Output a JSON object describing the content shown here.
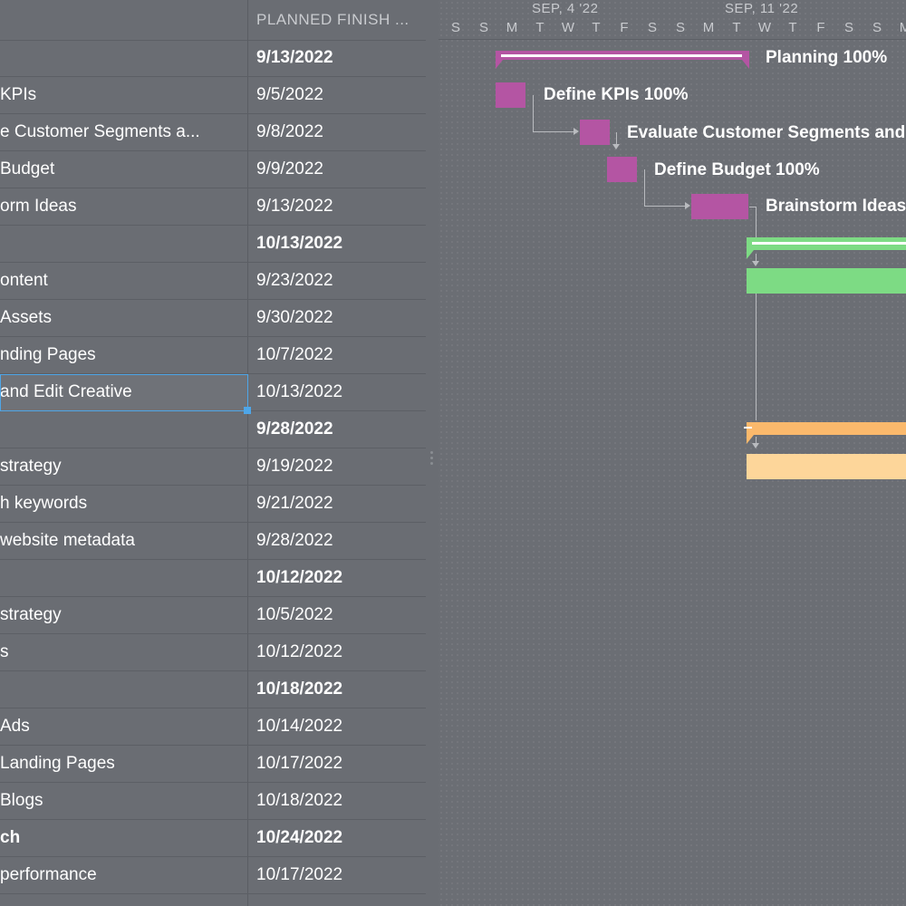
{
  "grid": {
    "finish_header": "PLANNED FINISH ...",
    "rows": [
      {
        "name": "",
        "finish": "9/13/2022",
        "bold": true
      },
      {
        "name": "KPIs",
        "finish": "9/5/2022",
        "bold": false
      },
      {
        "name": "e Customer Segments a...",
        "finish": "9/8/2022",
        "bold": false
      },
      {
        "name": "Budget",
        "finish": "9/9/2022",
        "bold": false
      },
      {
        "name": "orm Ideas",
        "finish": "9/13/2022",
        "bold": false
      },
      {
        "name": "",
        "finish": "10/13/2022",
        "bold": true
      },
      {
        "name": "ontent",
        "finish": "9/23/2022",
        "bold": false
      },
      {
        "name": "Assets",
        "finish": "9/30/2022",
        "bold": false
      },
      {
        "name": "nding Pages",
        "finish": "10/7/2022",
        "bold": false
      },
      {
        "name": "and Edit Creative",
        "finish": "10/13/2022",
        "bold": false
      },
      {
        "name": "",
        "finish": "9/28/2022",
        "bold": true
      },
      {
        "name": "strategy",
        "finish": "9/19/2022",
        "bold": false
      },
      {
        "name": "h keywords",
        "finish": "9/21/2022",
        "bold": false
      },
      {
        "name": "website metadata",
        "finish": "9/28/2022",
        "bold": false
      },
      {
        "name": "",
        "finish": "10/12/2022",
        "bold": true
      },
      {
        "name": "strategy",
        "finish": "10/5/2022",
        "bold": false
      },
      {
        "name": "s",
        "finish": "10/12/2022",
        "bold": false
      },
      {
        "name": "",
        "finish": "10/18/2022",
        "bold": true
      },
      {
        "name": "Ads",
        "finish": "10/14/2022",
        "bold": false
      },
      {
        "name": " Landing Pages",
        "finish": "10/17/2022",
        "bold": false
      },
      {
        "name": "Blogs",
        "finish": "10/18/2022",
        "bold": false
      },
      {
        "name": "ch",
        "finish": "10/24/2022",
        "bold": true
      },
      {
        "name": " performance",
        "finish": "10/17/2022",
        "bold": false
      }
    ]
  },
  "timeline": {
    "weeks": [
      "SEP, 4 '22",
      "SEP, 11 '22"
    ],
    "days": [
      "S",
      "S",
      "M",
      "T",
      "W",
      "T",
      "F",
      "S",
      "S",
      "M",
      "T",
      "W",
      "T",
      "F",
      "S",
      "S",
      "M"
    ]
  },
  "gantt": {
    "labels": {
      "planning": "Planning  100%",
      "define_kpis": "Define KPIs  100%",
      "evaluate": "Evaluate Customer Segments and",
      "define_budget": "Define Budget  100%",
      "brainstorm": "Brainstorm Ideas"
    },
    "colors": {
      "planning": "#b455a3",
      "content": "#7ddb84",
      "seo": "#fbb96c",
      "seo_task": "#fdd69a"
    },
    "progress": {
      "planning": 1.0,
      "define_kpis": 1.0,
      "define_budget": 1.0
    }
  }
}
